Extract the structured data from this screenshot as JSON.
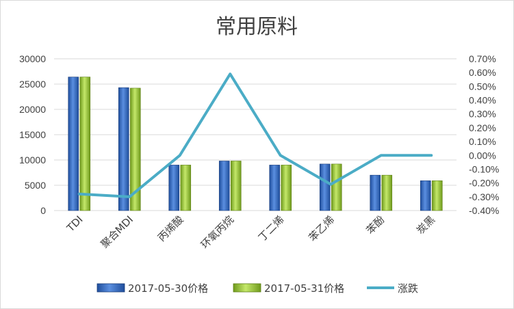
{
  "chart_data": {
    "type": "bar",
    "title": "常用原料",
    "categories": [
      "TDI",
      "聚合MDI",
      "丙烯酸",
      "环氧丙烷",
      "丁二烯",
      "苯乙烯",
      "苯酚",
      "炭黑"
    ],
    "series": [
      {
        "name": "2017-05-30价格",
        "type": "bar",
        "axis": "left",
        "color": "#2e62b4",
        "values": [
          26400,
          24300,
          9000,
          9800,
          9000,
          9200,
          7000,
          5900
        ]
      },
      {
        "name": "2017-05-31价格",
        "type": "bar",
        "axis": "left",
        "color": "#9bcd38",
        "values": [
          26400,
          24200,
          9000,
          9800,
          9000,
          9200,
          7000,
          5900
        ]
      },
      {
        "name": "涨跌",
        "type": "line",
        "axis": "right",
        "color": "#4bacc6",
        "values": [
          -0.28,
          -0.3,
          0.0,
          0.59,
          0.0,
          -0.21,
          0.0,
          0.0
        ]
      }
    ],
    "y_left": {
      "min": 0,
      "max": 30000,
      "step": 5000,
      "ticks": [
        "0",
        "5000",
        "10000",
        "15000",
        "20000",
        "25000",
        "30000"
      ]
    },
    "y_right": {
      "min": -0.4,
      "max": 0.7,
      "step": 0.1,
      "ticks": [
        "-0.40%",
        "-0.30%",
        "-0.20%",
        "-0.10%",
        "0.00%",
        "0.10%",
        "0.20%",
        "0.30%",
        "0.40%",
        "0.50%",
        "0.60%",
        "0.70%"
      ]
    },
    "grid": true,
    "legend": "bottom"
  }
}
